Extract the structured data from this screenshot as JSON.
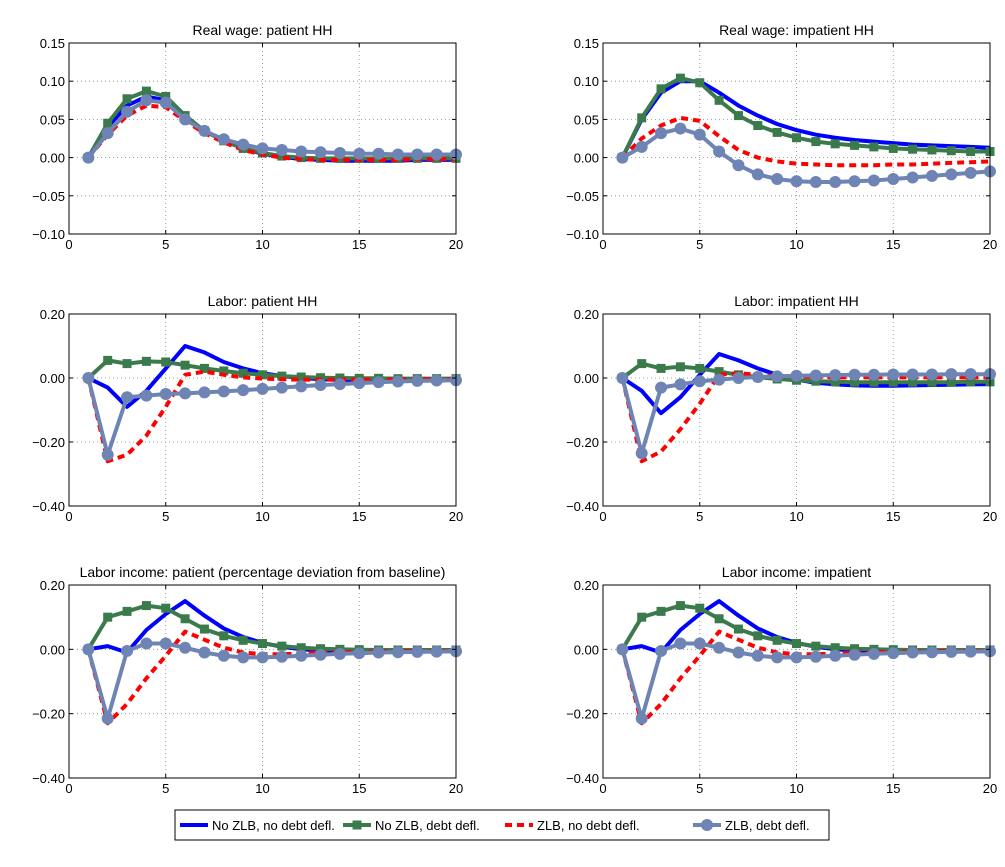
{
  "chart_data": [
    {
      "type": "line",
      "title": "Real wage: patient HH",
      "x": [
        1,
        2,
        3,
        4,
        5,
        6,
        7,
        8,
        9,
        10,
        11,
        12,
        13,
        14,
        15,
        16,
        17,
        18,
        19,
        20
      ],
      "xlim": [
        0,
        20
      ],
      "xticks": [
        "0",
        "5",
        "10",
        "15",
        "20"
      ],
      "ylim": [
        -0.1,
        0.15
      ],
      "yticks": [
        "−0.10",
        "−0.05",
        "0.00",
        "0.05",
        "0.10",
        "0.15"
      ],
      "grid": true,
      "series": [
        {
          "name": "No ZLB, no debt defl.",
          "values": [
            0.0,
            0.04,
            0.068,
            0.08,
            0.075,
            0.052,
            0.035,
            0.022,
            0.012,
            0.005,
            0.001,
            -0.002,
            -0.003,
            -0.004,
            -0.004,
            -0.004,
            -0.004,
            -0.003,
            -0.003,
            -0.003
          ]
        },
        {
          "name": "No ZLB, debt defl.",
          "values": [
            0.0,
            0.045,
            0.077,
            0.087,
            0.08,
            0.055,
            0.035,
            0.022,
            0.012,
            0.006,
            0.002,
            0.0,
            -0.001,
            -0.001,
            -0.001,
            -0.001,
            -0.001,
            -0.001,
            -0.001,
            -0.001
          ]
        },
        {
          "name": "ZLB, no debt defl.",
          "values": [
            0.0,
            0.03,
            0.055,
            0.068,
            0.066,
            0.048,
            0.032,
            0.02,
            0.01,
            0.004,
            0.0,
            -0.002,
            -0.003,
            -0.003,
            -0.003,
            -0.003,
            -0.003,
            -0.002,
            -0.002,
            -0.002
          ]
        },
        {
          "name": "ZLB, debt defl.",
          "values": [
            0.0,
            0.032,
            0.06,
            0.075,
            0.072,
            0.05,
            0.035,
            0.024,
            0.017,
            0.012,
            0.01,
            0.008,
            0.007,
            0.006,
            0.005,
            0.005,
            0.004,
            0.004,
            0.004,
            0.004
          ]
        }
      ]
    },
    {
      "type": "line",
      "title": "Real wage: impatient HH",
      "x": [
        1,
        2,
        3,
        4,
        5,
        6,
        7,
        8,
        9,
        10,
        11,
        12,
        13,
        14,
        15,
        16,
        17,
        18,
        19,
        20
      ],
      "xlim": [
        0,
        20
      ],
      "xticks": [
        "0",
        "5",
        "10",
        "15",
        "20"
      ],
      "ylim": [
        -0.1,
        0.15
      ],
      "yticks": [
        "−0.10",
        "−0.05",
        "0.00",
        "0.05",
        "0.10",
        "0.15"
      ],
      "grid": true,
      "series": [
        {
          "name": "No ZLB, no debt defl.",
          "values": [
            0.0,
            0.05,
            0.085,
            0.1,
            0.1,
            0.085,
            0.068,
            0.055,
            0.044,
            0.036,
            0.03,
            0.026,
            0.023,
            0.021,
            0.019,
            0.017,
            0.016,
            0.015,
            0.014,
            0.013
          ]
        },
        {
          "name": "No ZLB, debt defl.",
          "values": [
            0.0,
            0.052,
            0.09,
            0.104,
            0.098,
            0.075,
            0.055,
            0.042,
            0.033,
            0.026,
            0.021,
            0.018,
            0.016,
            0.014,
            0.012,
            0.011,
            0.01,
            0.009,
            0.008,
            0.008
          ]
        },
        {
          "name": "ZLB, no debt defl.",
          "values": [
            0.0,
            0.025,
            0.042,
            0.052,
            0.048,
            0.028,
            0.01,
            0.0,
            -0.005,
            -0.008,
            -0.009,
            -0.01,
            -0.01,
            -0.01,
            -0.009,
            -0.009,
            -0.008,
            -0.007,
            -0.006,
            -0.005
          ]
        },
        {
          "name": "ZLB, debt defl.",
          "values": [
            0.0,
            0.014,
            0.032,
            0.038,
            0.03,
            0.008,
            -0.01,
            -0.022,
            -0.028,
            -0.031,
            -0.032,
            -0.032,
            -0.031,
            -0.03,
            -0.028,
            -0.026,
            -0.024,
            -0.022,
            -0.02,
            -0.018
          ]
        }
      ]
    },
    {
      "type": "line",
      "title": "Labor: patient HH",
      "x": [
        1,
        2,
        3,
        4,
        5,
        6,
        7,
        8,
        9,
        10,
        11,
        12,
        13,
        14,
        15,
        16,
        17,
        18,
        19,
        20
      ],
      "xlim": [
        0,
        20
      ],
      "xticks": [
        "0",
        "5",
        "10",
        "15",
        "20"
      ],
      "ylim": [
        -0.4,
        0.2
      ],
      "yticks": [
        "−0.40",
        "−0.20",
        "0.00",
        "0.20"
      ],
      "grid": true,
      "series": [
        {
          "name": "No ZLB, no debt defl.",
          "values": [
            0.0,
            -0.03,
            -0.09,
            -0.04,
            0.03,
            0.1,
            0.08,
            0.05,
            0.03,
            0.015,
            0.006,
            0.0,
            -0.004,
            -0.006,
            -0.007,
            -0.007,
            -0.007,
            -0.006,
            -0.006,
            -0.005
          ]
        },
        {
          "name": "No ZLB, debt defl.",
          "values": [
            0.0,
            0.055,
            0.045,
            0.052,
            0.05,
            0.04,
            0.03,
            0.022,
            0.015,
            0.01,
            0.006,
            0.003,
            0.001,
            0.0,
            -0.001,
            -0.001,
            -0.002,
            -0.002,
            -0.002,
            -0.002
          ]
        },
        {
          "name": "ZLB, no debt defl.",
          "values": [
            0.0,
            -0.26,
            -0.24,
            -0.18,
            -0.09,
            0.01,
            0.02,
            0.01,
            0.002,
            -0.002,
            -0.004,
            -0.005,
            -0.005,
            -0.005,
            -0.005,
            -0.005,
            -0.004,
            -0.004,
            -0.004,
            -0.004
          ]
        },
        {
          "name": "ZLB, debt defl.",
          "values": [
            0.0,
            -0.24,
            -0.06,
            -0.055,
            -0.05,
            -0.048,
            -0.045,
            -0.042,
            -0.038,
            -0.034,
            -0.03,
            -0.026,
            -0.022,
            -0.019,
            -0.016,
            -0.013,
            -0.011,
            -0.009,
            -0.008,
            -0.007
          ]
        }
      ]
    },
    {
      "type": "line",
      "title": "Labor: impatient HH",
      "x": [
        1,
        2,
        3,
        4,
        5,
        6,
        7,
        8,
        9,
        10,
        11,
        12,
        13,
        14,
        15,
        16,
        17,
        18,
        19,
        20
      ],
      "xlim": [
        0,
        20
      ],
      "xticks": [
        "0",
        "5",
        "10",
        "15",
        "20"
      ],
      "ylim": [
        -0.4,
        0.2
      ],
      "yticks": [
        "−0.40",
        "−0.20",
        "0.00",
        "0.20"
      ],
      "grid": true,
      "series": [
        {
          "name": "No ZLB, no debt defl.",
          "values": [
            0.0,
            -0.04,
            -0.11,
            -0.06,
            0.01,
            0.075,
            0.055,
            0.03,
            0.01,
            -0.005,
            -0.015,
            -0.02,
            -0.023,
            -0.024,
            -0.024,
            -0.023,
            -0.022,
            -0.021,
            -0.02,
            -0.019
          ]
        },
        {
          "name": "No ZLB, debt defl.",
          "values": [
            0.0,
            0.045,
            0.03,
            0.035,
            0.03,
            0.02,
            0.01,
            0.003,
            -0.003,
            -0.007,
            -0.01,
            -0.012,
            -0.013,
            -0.013,
            -0.013,
            -0.013,
            -0.013,
            -0.013,
            -0.012,
            -0.012
          ]
        },
        {
          "name": "ZLB, no debt defl.",
          "values": [
            0.0,
            -0.26,
            -0.23,
            -0.16,
            -0.08,
            0.01,
            0.015,
            0.01,
            0.006,
            0.004,
            0.003,
            0.002,
            0.002,
            0.002,
            0.002,
            0.002,
            0.002,
            0.002,
            0.002,
            0.002
          ]
        },
        {
          "name": "ZLB, debt defl.",
          "values": [
            0.0,
            -0.235,
            -0.03,
            -0.02,
            -0.01,
            -0.005,
            0.0,
            0.003,
            0.005,
            0.007,
            0.008,
            0.009,
            0.01,
            0.01,
            0.011,
            0.011,
            0.011,
            0.012,
            0.012,
            0.012
          ]
        }
      ]
    },
    {
      "type": "line",
      "title": "Labor income: patient (percentage deviation from baseline)",
      "x": [
        1,
        2,
        3,
        4,
        5,
        6,
        7,
        8,
        9,
        10,
        11,
        12,
        13,
        14,
        15,
        16,
        17,
        18,
        19,
        20
      ],
      "xlim": [
        0,
        20
      ],
      "xticks": [
        "0",
        "5",
        "10",
        "15",
        "20"
      ],
      "ylim": [
        -0.4,
        0.2
      ],
      "yticks": [
        "−0.40",
        "−0.20",
        "0.00",
        "0.20"
      ],
      "grid": true,
      "series": [
        {
          "name": "No ZLB, no debt defl.",
          "values": [
            0.0,
            0.01,
            -0.01,
            0.06,
            0.11,
            0.15,
            0.105,
            0.065,
            0.038,
            0.02,
            0.008,
            0.0,
            -0.004,
            -0.006,
            -0.007,
            -0.007,
            -0.007,
            -0.006,
            -0.006,
            -0.006
          ]
        },
        {
          "name": "No ZLB, debt defl.",
          "values": [
            0.0,
            0.1,
            0.118,
            0.136,
            0.128,
            0.095,
            0.063,
            0.042,
            0.028,
            0.018,
            0.01,
            0.005,
            0.002,
            0.0,
            -0.001,
            -0.002,
            -0.002,
            -0.002,
            -0.002,
            -0.002
          ]
        },
        {
          "name": "ZLB, no debt defl.",
          "values": [
            0.0,
            -0.23,
            -0.17,
            -0.09,
            -0.02,
            0.055,
            0.03,
            0.005,
            -0.01,
            -0.015,
            -0.015,
            -0.013,
            -0.011,
            -0.009,
            -0.008,
            -0.007,
            -0.006,
            -0.005,
            -0.005,
            -0.005
          ]
        },
        {
          "name": "ZLB, debt defl.",
          "values": [
            0.0,
            -0.215,
            -0.005,
            0.018,
            0.018,
            0.005,
            -0.01,
            -0.02,
            -0.025,
            -0.025,
            -0.023,
            -0.02,
            -0.017,
            -0.014,
            -0.012,
            -0.01,
            -0.009,
            -0.008,
            -0.007,
            -0.006
          ]
        }
      ]
    },
    {
      "type": "line",
      "title": "Labor income: impatient",
      "x": [
        1,
        2,
        3,
        4,
        5,
        6,
        7,
        8,
        9,
        10,
        11,
        12,
        13,
        14,
        15,
        16,
        17,
        18,
        19,
        20
      ],
      "xlim": [
        0,
        20
      ],
      "xticks": [
        "0",
        "5",
        "10",
        "15",
        "20"
      ],
      "ylim": [
        -0.4,
        0.2
      ],
      "yticks": [
        "−0.40",
        "−0.20",
        "0.00",
        "0.20"
      ],
      "grid": true,
      "series": [
        {
          "name": "No ZLB, no debt defl.",
          "values": [
            0.0,
            0.01,
            -0.01,
            0.06,
            0.11,
            0.15,
            0.105,
            0.065,
            0.038,
            0.02,
            0.008,
            0.0,
            -0.004,
            -0.006,
            -0.007,
            -0.007,
            -0.007,
            -0.006,
            -0.006,
            -0.006
          ]
        },
        {
          "name": "No ZLB, debt defl.",
          "values": [
            0.0,
            0.1,
            0.118,
            0.136,
            0.128,
            0.095,
            0.063,
            0.042,
            0.028,
            0.018,
            0.01,
            0.005,
            0.002,
            0.0,
            -0.001,
            -0.002,
            -0.002,
            -0.002,
            -0.002,
            -0.002
          ]
        },
        {
          "name": "ZLB, no debt defl.",
          "values": [
            0.0,
            -0.23,
            -0.17,
            -0.09,
            -0.02,
            0.055,
            0.03,
            0.005,
            -0.01,
            -0.015,
            -0.015,
            -0.013,
            -0.011,
            -0.009,
            -0.008,
            -0.007,
            -0.006,
            -0.005,
            -0.005,
            -0.005
          ]
        },
        {
          "name": "ZLB, debt defl.",
          "values": [
            0.0,
            -0.215,
            -0.005,
            0.018,
            0.018,
            0.005,
            -0.01,
            -0.02,
            -0.025,
            -0.025,
            -0.023,
            -0.02,
            -0.017,
            -0.014,
            -0.012,
            -0.01,
            -0.009,
            -0.008,
            -0.007,
            -0.006
          ]
        }
      ]
    }
  ],
  "legend": {
    "placement": "bottom-center",
    "entries": [
      {
        "label": "No ZLB, no debt defl.",
        "color": "#0000ff",
        "style": "solid",
        "marker": "none"
      },
      {
        "label": "No ZLB, debt defl.",
        "color": "#3b7a4a",
        "style": "solid",
        "marker": "square"
      },
      {
        "label": "ZLB, no debt defl.",
        "color": "#ff0000",
        "style": "dashed",
        "marker": "none"
      },
      {
        "label": "ZLB, debt defl.",
        "color": "#6d84b4",
        "style": "solid",
        "marker": "circle"
      }
    ]
  }
}
